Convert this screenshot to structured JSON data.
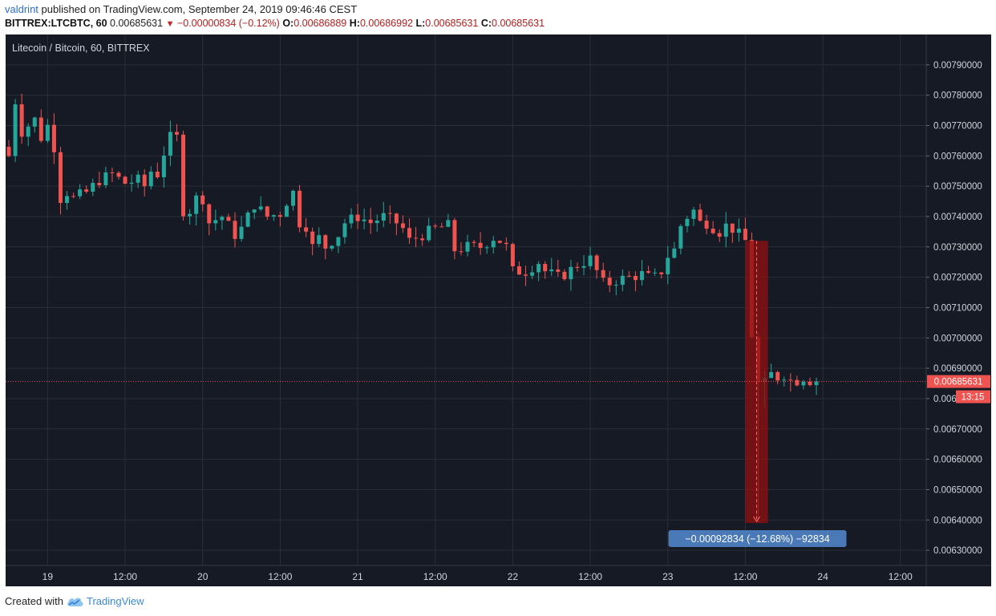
{
  "header": {
    "author": "valdrint",
    "published_text": " published on TradingView.com, September 24, 2019 09:46:46 CEST"
  },
  "quote": {
    "symbol": "BITTREX:LTCBTC, 60",
    "last": "0.00685631",
    "change": "−0.00000834 (−0.12%)",
    "open_label": "O:",
    "open": "0.00686889",
    "high_label": "H:",
    "high": "0.00686992",
    "low_label": "L:",
    "low": "0.00685631",
    "close_label": "C:",
    "close": "0.00685631"
  },
  "footer": {
    "created_with": "Created with",
    "brand": "TradingView"
  },
  "colors": {
    "background": "#161a25",
    "grid": "#2a2e39",
    "up": "#26a69a",
    "down": "#ef5350",
    "price_line": "#ef5350",
    "measure_fill": "#8b1010",
    "measure_label_bg": "#4a79b8"
  },
  "chart_data": {
    "type": "candlestick",
    "title": "Litecoin / Bitcoin, 60, BITTREX",
    "ylim": [
      0.00625,
      0.008
    ],
    "y_ticks": [
      "0.00790000",
      "0.00780000",
      "0.00770000",
      "0.00760000",
      "0.00750000",
      "0.00740000",
      "0.00730000",
      "0.00720000",
      "0.00710000",
      "0.00700000",
      "0.00690000",
      "0.00680000",
      "0.00670000",
      "0.00660000",
      "0.00650000",
      "0.00640000",
      "0.00630000"
    ],
    "y_tick_values": [
      0.0079,
      0.0078,
      0.0077,
      0.0076,
      0.0075,
      0.0074,
      0.0073,
      0.0072,
      0.0071,
      0.007,
      0.0069,
      0.0068,
      0.0067,
      0.0066,
      0.0065,
      0.0064,
      0.0063
    ],
    "x_ticks": [
      {
        "label": "19",
        "hour": 0
      },
      {
        "label": "12:00",
        "hour": 12
      },
      {
        "label": "20",
        "hour": 24
      },
      {
        "label": "12:00",
        "hour": 36
      },
      {
        "label": "21",
        "hour": 48
      },
      {
        "label": "12:00",
        "hour": 60
      },
      {
        "label": "22",
        "hour": 72
      },
      {
        "label": "12:00",
        "hour": 84
      },
      {
        "label": "23",
        "hour": 96
      },
      {
        "label": "12:00",
        "hour": 108
      },
      {
        "label": "24",
        "hour": 120
      },
      {
        "label": "12:00",
        "hour": 132
      }
    ],
    "x_range_hours": [
      -6.5,
      136
    ],
    "first_candle_hour": -6,
    "last_price": "0.00685631",
    "last_price_value": 0.00685631,
    "countdown": "13:15",
    "measure": {
      "from_hour": 108,
      "to_hour": 111.5,
      "from_price": 0.00732,
      "to_price": 0.00639,
      "label": "−0.00092834 (−12.68%) −92834"
    },
    "waypoints": [
      [
        -6,
        0.0076
      ],
      [
        -5,
        0.00778
      ],
      [
        -4,
        0.00768
      ],
      [
        -3,
        0.0077
      ],
      [
        -2,
        0.00772
      ],
      [
        -1,
        0.00766
      ],
      [
        0,
        0.0077
      ],
      [
        1,
        0.00763
      ],
      [
        2,
        0.00746
      ],
      [
        3,
        0.00748
      ],
      [
        4,
        0.00746
      ],
      [
        6,
        0.00748
      ],
      [
        8,
        0.00752
      ],
      [
        10,
        0.00754
      ],
      [
        12,
        0.00751
      ],
      [
        14,
        0.00752
      ],
      [
        15,
        0.0075
      ],
      [
        16,
        0.00755
      ],
      [
        17,
        0.00754
      ],
      [
        18,
        0.00761
      ],
      [
        19,
        0.00766
      ],
      [
        20,
        0.00766
      ],
      [
        21,
        0.00742
      ],
      [
        22,
        0.00742
      ],
      [
        23,
        0.00746
      ],
      [
        24,
        0.00746
      ],
      [
        25,
        0.00738
      ],
      [
        27,
        0.0074
      ],
      [
        28,
        0.00737
      ],
      [
        29,
        0.00734
      ],
      [
        30,
        0.00736
      ],
      [
        32,
        0.00744
      ],
      [
        34,
        0.0074
      ],
      [
        36,
        0.00741
      ],
      [
        37,
        0.00745
      ],
      [
        38,
        0.00748
      ],
      [
        39,
        0.00738
      ],
      [
        40,
        0.00737
      ],
      [
        41,
        0.0073
      ],
      [
        42,
        0.00733
      ],
      [
        43,
        0.0073
      ],
      [
        44,
        0.00732
      ],
      [
        45,
        0.00734
      ],
      [
        46,
        0.00738
      ],
      [
        48,
        0.0074
      ],
      [
        50,
        0.00738
      ],
      [
        52,
        0.0074
      ],
      [
        54,
        0.00738
      ],
      [
        55,
        0.00736
      ],
      [
        56,
        0.00732
      ],
      [
        58,
        0.00734
      ],
      [
        60,
        0.00736
      ],
      [
        62,
        0.00737
      ],
      [
        63,
        0.00729
      ],
      [
        65,
        0.0073
      ],
      [
        67,
        0.0073
      ],
      [
        69,
        0.00733
      ],
      [
        70,
        0.00732
      ],
      [
        71,
        0.0073
      ],
      [
        72,
        0.00722
      ],
      [
        74,
        0.00722
      ],
      [
        76,
        0.00725
      ],
      [
        77,
        0.00722
      ],
      [
        79,
        0.0072
      ],
      [
        80,
        0.00721
      ],
      [
        82,
        0.00724
      ],
      [
        84,
        0.00726
      ],
      [
        85,
        0.00722
      ],
      [
        86,
        0.00718
      ],
      [
        87,
        0.00718
      ],
      [
        88,
        0.00719
      ],
      [
        90,
        0.0072
      ],
      [
        92,
        0.00721
      ],
      [
        93,
        0.0072
      ],
      [
        94,
        0.0072
      ],
      [
        95,
        0.00722
      ],
      [
        96,
        0.00727
      ],
      [
        97,
        0.00729
      ],
      [
        98,
        0.00737
      ],
      [
        99,
        0.0074
      ],
      [
        100,
        0.00742
      ],
      [
        101,
        0.00738
      ],
      [
        102,
        0.00738
      ],
      [
        104,
        0.00735
      ],
      [
        105,
        0.00737
      ],
      [
        106,
        0.00736
      ],
      [
        107,
        0.00734
      ],
      [
        108,
        0.00732
      ],
      [
        109,
        0.00701
      ],
      [
        110,
        0.00685
      ],
      [
        111,
        0.00685
      ],
      [
        112,
        0.00688
      ],
      [
        113,
        0.00687
      ],
      [
        114,
        0.00688
      ],
      [
        115,
        0.00686
      ],
      [
        116,
        0.00686
      ],
      [
        117,
        0.00687
      ],
      [
        118,
        0.00686
      ],
      [
        119,
        0.00686
      ]
    ],
    "extreme_wicks": [
      {
        "hour": 110,
        "low": 0.00639
      },
      {
        "hour": 111,
        "low": 0.00677
      }
    ]
  }
}
